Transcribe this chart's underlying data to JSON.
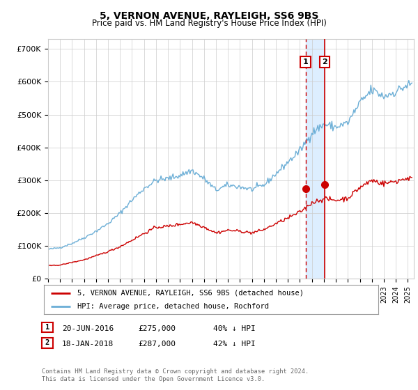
{
  "title": "5, VERNON AVENUE, RAYLEIGH, SS6 9BS",
  "subtitle": "Price paid vs. HM Land Registry's House Price Index (HPI)",
  "ylabel_ticks": [
    "£0",
    "£100K",
    "£200K",
    "£300K",
    "£400K",
    "£500K",
    "£600K",
    "£700K"
  ],
  "ytick_values": [
    0,
    100000,
    200000,
    300000,
    400000,
    500000,
    600000,
    700000
  ],
  "ylim": [
    0,
    730000
  ],
  "xlim_start": 1995.0,
  "xlim_end": 2025.5,
  "sale1_x": 2016.47,
  "sale1_y": 275000,
  "sale1_label": "1",
  "sale2_x": 2018.05,
  "sale2_y": 287000,
  "sale2_label": "2",
  "legend_line1": "5, VERNON AVENUE, RAYLEIGH, SS6 9BS (detached house)",
  "legend_line2": "HPI: Average price, detached house, Rochford",
  "hpi_color": "#6baed6",
  "price_color": "#cc0000",
  "vline1_color": "#cc0000",
  "vline2_color": "#cc0000",
  "shade_color": "#ddeeff",
  "background_color": "#ffffff",
  "grid_color": "#cccccc",
  "label1_box_color": "#cc0000",
  "label2_box_color": "#cc0000"
}
